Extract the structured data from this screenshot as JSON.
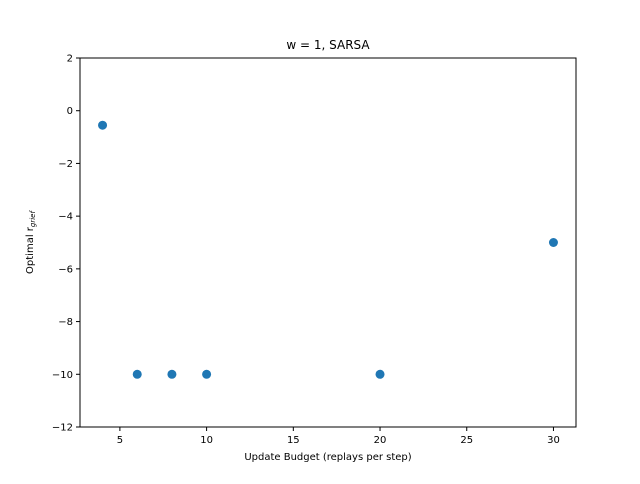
{
  "chart_data": {
    "type": "scatter",
    "title": "w = 1, SARSA",
    "xlabel": "Update Budget (replays per step)",
    "ylabel_main": "Optimal r",
    "ylabel_sub": "grief",
    "x": [
      4,
      6,
      8,
      10,
      20,
      30
    ],
    "y": [
      -0.55,
      -10,
      -10,
      -10,
      -10,
      -5
    ],
    "xlim": [
      2.7,
      31.3
    ],
    "ylim": [
      -12,
      2
    ],
    "xticks": [
      5,
      10,
      15,
      20,
      25,
      30
    ],
    "yticks": [
      -12,
      -10,
      -8,
      -6,
      -4,
      -2,
      0,
      2
    ],
    "grid": false,
    "legend": "none",
    "color": "#1f77b4"
  }
}
